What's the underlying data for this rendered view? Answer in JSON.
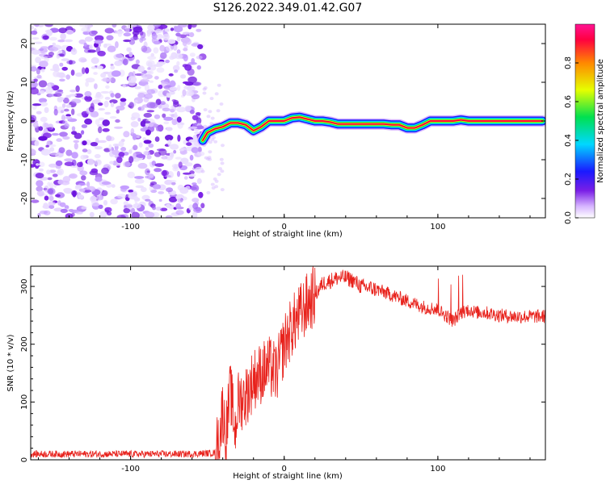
{
  "title": "S126.2022.349.01.42.G07",
  "chart_data": [
    {
      "type": "heatmap",
      "xlabel": "Height of straight line (km)",
      "ylabel": "Frequency (Hz)",
      "xlim": [
        -165,
        170
      ],
      "ylim": [
        -25,
        25
      ],
      "x_ticks": [
        -100,
        0,
        100
      ],
      "y_ticks": [
        -20,
        -10,
        0,
        10,
        20
      ],
      "noise_region_x": [
        -165,
        -53
      ],
      "ridge": {
        "x": [
          -53,
          -50,
          -45,
          -40,
          -35,
          -30,
          -25,
          -20,
          -15,
          -10,
          -5,
          0,
          5,
          10,
          15,
          20,
          25,
          30,
          35,
          40,
          45,
          50,
          55,
          60,
          65,
          70,
          75,
          80,
          85,
          90,
          95,
          100,
          105,
          110,
          115,
          120,
          125,
          130,
          135,
          140,
          150,
          160,
          168
        ],
        "y": [
          -5,
          -3,
          -2,
          -1.5,
          -0.5,
          -0.5,
          -1,
          -2.5,
          -1.5,
          0,
          0,
          0,
          0.8,
          1,
          0.5,
          0,
          0,
          -0.3,
          -0.8,
          -0.8,
          -0.8,
          -0.8,
          -0.8,
          -0.8,
          -0.8,
          -1,
          -1,
          -1.8,
          -1.8,
          -1,
          0,
          0,
          0,
          0,
          0.3,
          0,
          0,
          0,
          0,
          0,
          0,
          0,
          0
        ]
      },
      "colorbar": {
        "label": "Normalized spectral amplitude",
        "range": [
          0,
          1
        ],
        "ticks": [
          "0.0",
          "0.2",
          "0.4",
          "0.6",
          "0.8"
        ],
        "colors": [
          "#ffffff",
          "#d6b4ff",
          "#7a1fe6",
          "#1a1aff",
          "#00d8ff",
          "#00e050",
          "#e6ff00",
          "#ff8800",
          "#ff0040",
          "#ff1493"
        ]
      }
    },
    {
      "type": "line",
      "xlabel": "Height of straight line (km)",
      "ylabel": "SNR (10 * v/v)",
      "xlim": [
        -165,
        170
      ],
      "ylim": [
        0,
        335
      ],
      "x_ticks": [
        -100,
        0,
        100
      ],
      "y_ticks": [
        0,
        100,
        200,
        300
      ],
      "color": "#e8221c",
      "series": [
        {
          "x": [
            -165,
            -140,
            -120,
            -100,
            -80,
            -60,
            -45,
            -42,
            -40,
            -38,
            -35,
            -32,
            -30,
            -25,
            -20,
            -15,
            -10,
            -5,
            0,
            5,
            10,
            15,
            20,
            25,
            30,
            35,
            40,
            45,
            50,
            60,
            70,
            80,
            90,
            100,
            105,
            110,
            115,
            120,
            125,
            130,
            140,
            150,
            160,
            170
          ],
          "y": [
            10,
            10,
            10,
            10,
            10,
            10,
            12,
            40,
            90,
            40,
            120,
            50,
            100,
            110,
            140,
            150,
            160,
            150,
            200,
            230,
            250,
            270,
            285,
            305,
            310,
            315,
            315,
            310,
            300,
            295,
            285,
            275,
            265,
            260,
            250,
            240,
            255,
            260,
            255,
            255,
            250,
            248,
            248,
            248
          ]
        }
      ]
    }
  ]
}
